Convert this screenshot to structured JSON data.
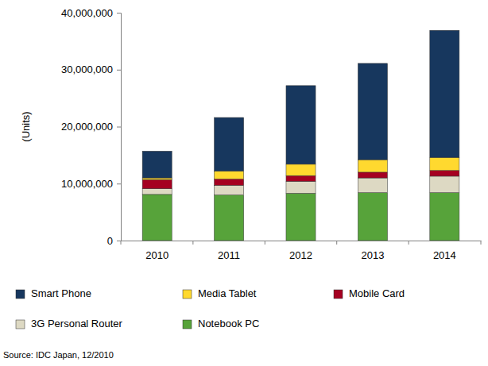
{
  "chart_data": {
    "type": "bar",
    "stacked": true,
    "grid": false,
    "legend": "bottom",
    "y_label": "(Units)",
    "annotations": [
      "Source: IDC Japan, 12/2010"
    ],
    "categories": [
      "2010",
      "2011",
      "2012",
      "2013",
      "2014"
    ],
    "ylim": [
      0,
      40000000
    ],
    "yticks": [
      0,
      {
        "value": 10000000,
        "label": "10,000,000"
      },
      {
        "value": 20000000,
        "label": "20,000,000"
      },
      {
        "value": 30000000,
        "label": "30,000,000"
      },
      {
        "value": 40000000,
        "label": "40,000,000"
      }
    ],
    "series": [
      {
        "name": "Smart Phone",
        "color": "#17375e",
        "values": [
          4700000,
          9400000,
          13800000,
          16900000,
          22300000
        ]
      },
      {
        "name": "Media Tablet",
        "color": "#ffd92f",
        "values": [
          300000,
          1400000,
          2000000,
          2200000,
          2300000
        ]
      },
      {
        "name": "Mobile Card",
        "color": "#a50021",
        "values": [
          1600000,
          1100000,
          1000000,
          1000000,
          1000000
        ]
      },
      {
        "name": "3G Personal Router",
        "color": "#ddd9c3",
        "values": [
          1000000,
          1700000,
          2100000,
          2600000,
          2900000
        ]
      },
      {
        "name": "Notebook PC",
        "color": "#57a33a",
        "values": [
          8100000,
          8000000,
          8300000,
          8400000,
          8400000
        ]
      }
    ]
  }
}
